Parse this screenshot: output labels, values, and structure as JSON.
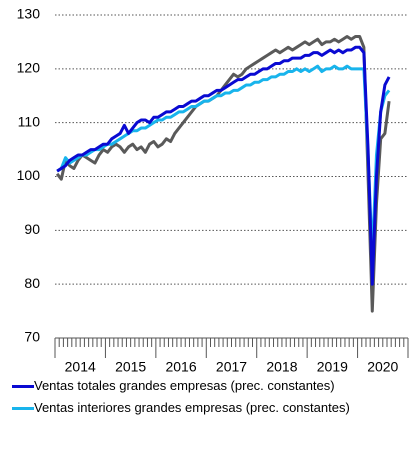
{
  "chart_data": {
    "type": "line",
    "categories": [
      "2014",
      "2015",
      "2016",
      "2017",
      "2018",
      "2019",
      "2020"
    ],
    "series": [
      {
        "name": "Ventas totales grandes empresas (prec. constantes)",
        "color": "#0a0ad2",
        "values": [
          [
            101,
            101.5,
            102,
            103,
            103.5,
            104,
            104,
            104.5,
            105,
            105,
            105.5,
            106
          ],
          [
            106,
            107,
            107.5,
            108,
            109.5,
            108,
            109,
            110,
            110.5,
            110.5,
            110,
            111
          ],
          [
            111,
            111.5,
            112,
            112,
            112.5,
            113,
            113,
            113.5,
            114,
            114,
            114.5,
            115
          ],
          [
            115,
            115.5,
            116,
            116,
            116.5,
            117,
            117.5,
            118,
            118,
            118.5,
            119,
            119
          ],
          [
            119.5,
            120,
            120,
            120.5,
            121,
            121,
            121.5,
            121.5,
            122,
            122,
            122,
            122.5
          ],
          [
            122.5,
            123,
            123,
            122.5,
            123,
            123.5,
            123,
            123.5,
            123,
            123.5,
            123.5,
            124
          ],
          [
            124,
            123,
            105,
            80,
            100,
            112,
            117,
            118.5
          ]
        ]
      },
      {
        "name": "Ventas interiores grandes empresas (prec. constantes)",
        "color": "#18b4ec",
        "values": [
          [
            101,
            101.5,
            103.5,
            102.5,
            103,
            103.5,
            104,
            104,
            104.5,
            105,
            105,
            105.5
          ],
          [
            106,
            106,
            106.5,
            107,
            107.5,
            108,
            108.5,
            108.5,
            109,
            109,
            109.5,
            110
          ],
          [
            110.5,
            110.5,
            111,
            111,
            111.5,
            112,
            112,
            112.5,
            113,
            113,
            113.5,
            114
          ],
          [
            114,
            114.5,
            115,
            115,
            115.5,
            115.5,
            116,
            116,
            116.5,
            117,
            117,
            117.5
          ],
          [
            117.5,
            118,
            118,
            118.5,
            118.5,
            119,
            119,
            119.5,
            119.5,
            120,
            119.5,
            120
          ],
          [
            119.5,
            120,
            120.5,
            119.5,
            120,
            120,
            120.5,
            120,
            120,
            120.5,
            120,
            120
          ],
          [
            120,
            120,
            104,
            85,
            104,
            112,
            115,
            116
          ]
        ]
      },
      {
        "color": "#5a5a5a",
        "values": [
          [
            100.5,
            99.5,
            103,
            102,
            101.5,
            103,
            104,
            103.5,
            103,
            102.5,
            104,
            105
          ],
          [
            104.5,
            105.5,
            106,
            105.5,
            104.5,
            105.5,
            106,
            105,
            105.5,
            104.5,
            106,
            106.5
          ],
          [
            105.5,
            106,
            107,
            106.5,
            108,
            109,
            110,
            111,
            112,
            113,
            113.5,
            114
          ],
          [
            114,
            114.5,
            115,
            116,
            117,
            118,
            119,
            118.5,
            119,
            120,
            120.5,
            121
          ],
          [
            121.5,
            122,
            122.5,
            123,
            123.5,
            123,
            123.5,
            124,
            123.5,
            124,
            124.5,
            125
          ],
          [
            124.5,
            125,
            125.5,
            124.5,
            125,
            125,
            125.5,
            125,
            125.5,
            126,
            125.5,
            126
          ],
          [
            126,
            124,
            100,
            75,
            95,
            107,
            108,
            114
          ]
        ]
      }
    ],
    "ylim": [
      70,
      130
    ],
    "yticks": [
      70,
      80,
      90,
      100,
      110,
      120,
      130
    ],
    "grid": true
  }
}
